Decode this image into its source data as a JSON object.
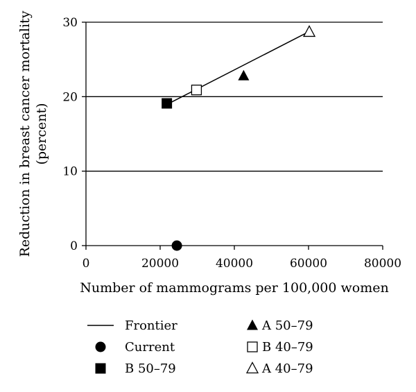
{
  "chart_data": {
    "type": "scatter",
    "title": "",
    "xlabel": "Number of mammograms per 100,000 women",
    "ylabel_lines": [
      "Reduction in breast cancer mortality",
      "(percent)"
    ],
    "xlim": [
      0,
      80000
    ],
    "ylim": [
      0,
      30
    ],
    "x_ticks": [
      {
        "value": 0,
        "label": "0"
      },
      {
        "value": 20000,
        "label": "20000"
      },
      {
        "value": 40000,
        "label": "40000"
      },
      {
        "value": 60000,
        "label": "60000"
      },
      {
        "value": 80000,
        "label": "80000"
      }
    ],
    "y_ticks": [
      {
        "value": 0,
        "label": "0"
      },
      {
        "value": 10,
        "label": "10"
      },
      {
        "value": 20,
        "label": "20"
      },
      {
        "value": 30,
        "label": "30"
      }
    ],
    "grid": "horizontal",
    "legend_position": "bottom",
    "series": [
      {
        "name": "Frontier",
        "marker": "line",
        "points": [
          [
            22000,
            19
          ],
          [
            60000,
            28.7
          ]
        ]
      },
      {
        "name": "Current",
        "marker": "circle-filled",
        "points": [
          [
            24500,
            0
          ]
        ]
      },
      {
        "name": "B 50–79",
        "marker": "square-filled",
        "points": [
          [
            21800,
            19.1
          ]
        ]
      },
      {
        "name": "A 50–79",
        "marker": "triangle-filled",
        "points": [
          [
            42500,
            22.8
          ]
        ]
      },
      {
        "name": "B 40–79",
        "marker": "square-open",
        "points": [
          [
            29800,
            20.9
          ]
        ]
      },
      {
        "name": "A 40–79",
        "marker": "triangle-open",
        "points": [
          [
            60200,
            28.7
          ]
        ]
      }
    ],
    "legend_order": [
      [
        "Frontier",
        "A 50–79"
      ],
      [
        "Current",
        "B 40–79"
      ],
      [
        "B 50–79",
        "A 40–79"
      ]
    ]
  }
}
